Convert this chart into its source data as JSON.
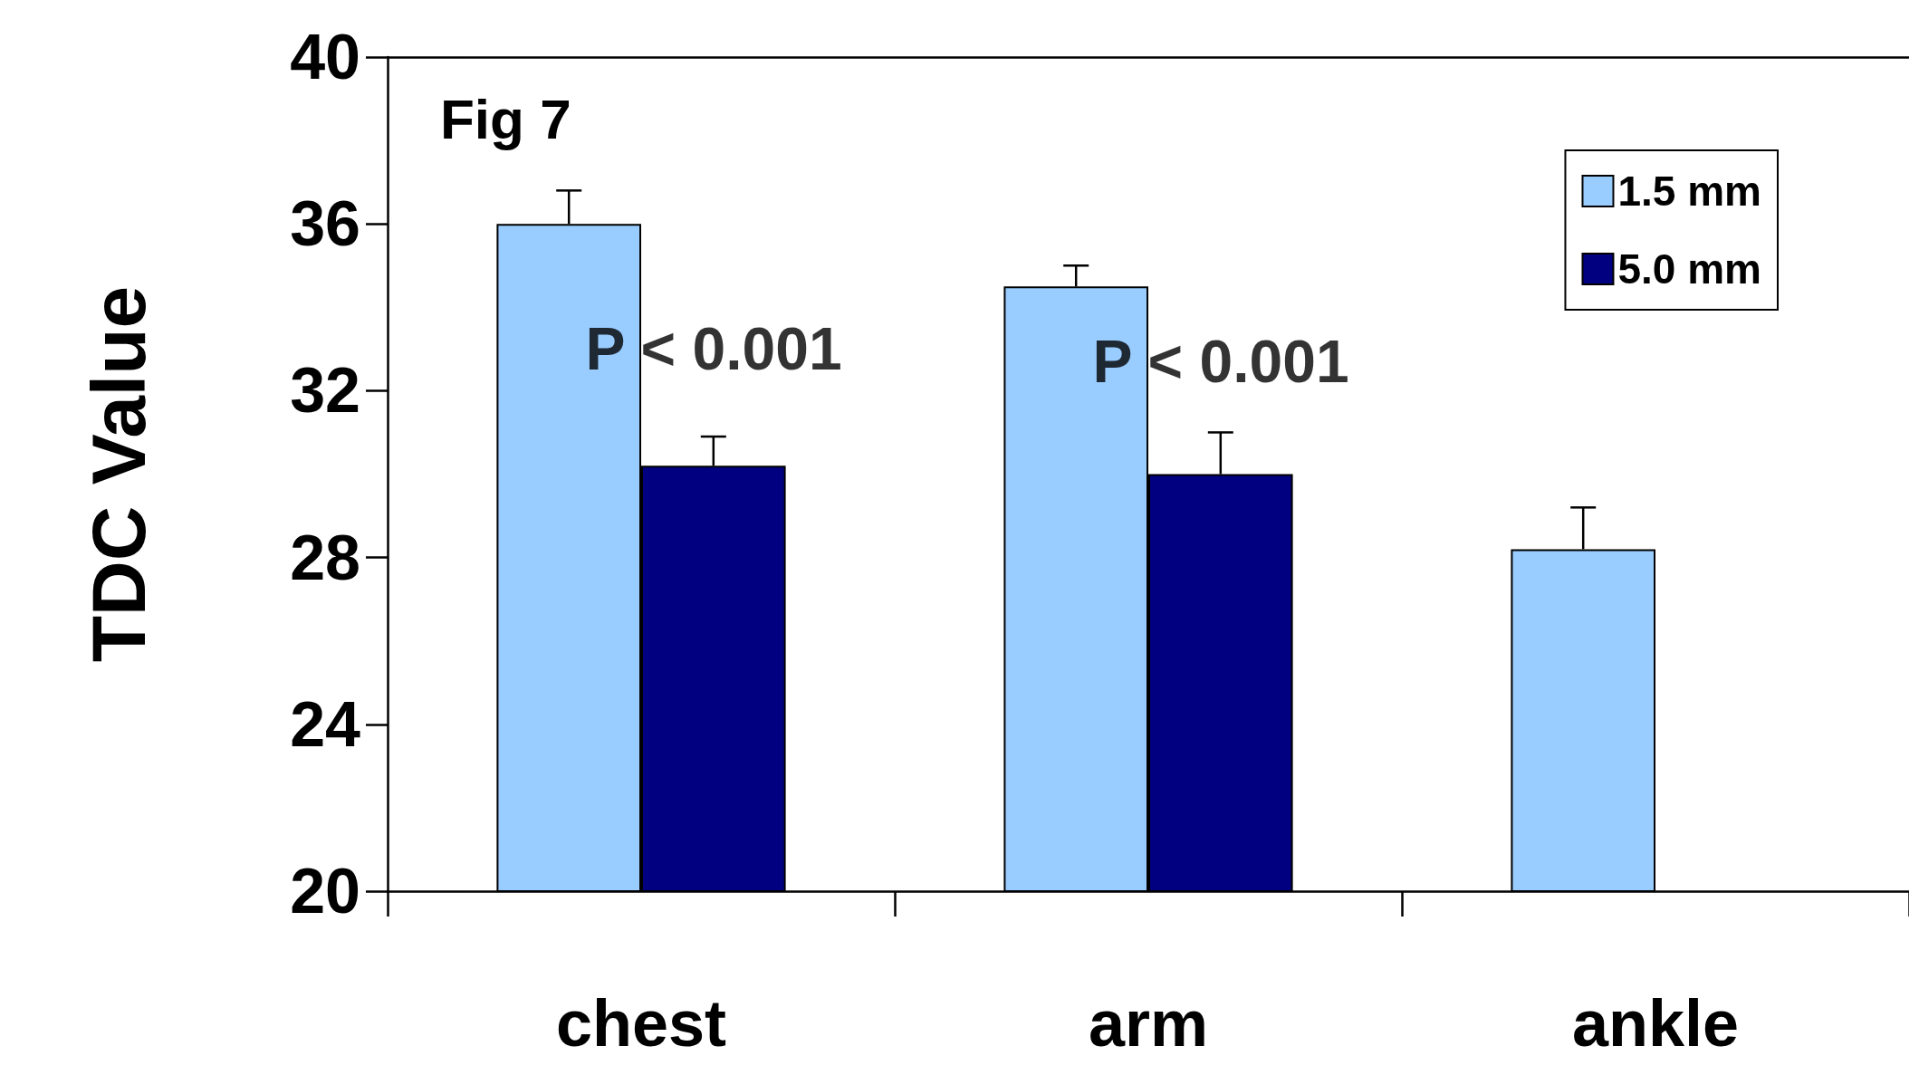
{
  "chart_data": {
    "type": "bar",
    "ylabel": "TDC Value",
    "categories": [
      "chest",
      "arm",
      "ankle"
    ],
    "series": [
      {
        "name": "1.5 mm",
        "color": "#99ccff",
        "values": [
          36.0,
          34.5,
          28.2
        ],
        "errors": [
          [
            36.0,
            36.8
          ],
          [
            34.5,
            35.0
          ],
          [
            28.2,
            29.2
          ]
        ]
      },
      {
        "name": "5.0 mm",
        "color": "#000080",
        "values": [
          30.2,
          30.0,
          null
        ],
        "errors": [
          [
            30.2,
            30.9
          ],
          [
            30.0,
            31.0
          ],
          null
        ]
      }
    ],
    "ylim": [
      20,
      40
    ],
    "yticks": [
      20,
      24,
      28,
      32,
      36,
      40
    ],
    "grid": false,
    "legend": "top right",
    "annotations": [
      "Fig 7",
      {
        "text": "P < 0.001",
        "x": "chest",
        "y": 33
      },
      {
        "text": "P < 0.001",
        "x": "arm",
        "y": 32.7
      }
    ]
  }
}
